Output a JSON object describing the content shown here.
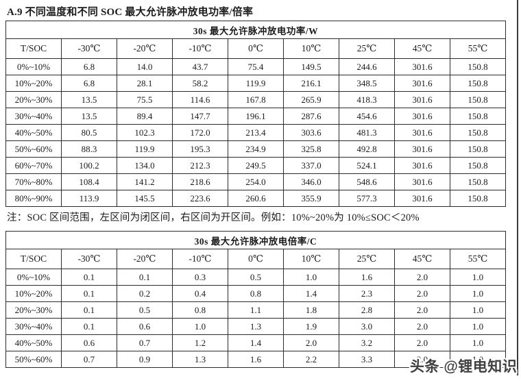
{
  "document": {
    "title": "A.9 不同温度和不同 SOC 最大允许脉冲放电功率/倍率",
    "note": "注：SOC 区间范围，左区间为闭区间，右区间为开区间。例如：10%~20%为 10%≤SOC＜20%",
    "watermark": "头条 @锂电知识"
  },
  "chart_data": [
    {
      "type": "table",
      "title": "30s 最大允许脉冲放电功率/W",
      "corner_label": "T/SOC",
      "columns": [
        "-30℃",
        "-20℃",
        "-10℃",
        "0℃",
        "10℃",
        "25℃",
        "45℃",
        "55℃"
      ],
      "rows": [
        {
          "label": "0%~10%",
          "values": [
            "6.8",
            "14.0",
            "43.7",
            "75.4",
            "149.5",
            "244.6",
            "301.6",
            "150.8"
          ]
        },
        {
          "label": "10%~20%",
          "values": [
            "6.8",
            "28.1",
            "58.2",
            "119.9",
            "216.1",
            "348.5",
            "301.6",
            "150.8"
          ]
        },
        {
          "label": "20%~30%",
          "values": [
            "13.5",
            "75.5",
            "114.6",
            "167.8",
            "265.9",
            "418.3",
            "301.6",
            "150.8"
          ]
        },
        {
          "label": "30%~40%",
          "values": [
            "13.5",
            "89.4",
            "147.7",
            "196.1",
            "287.6",
            "454.6",
            "301.6",
            "150.8"
          ]
        },
        {
          "label": "40%~50%",
          "values": [
            "80.5",
            "102.3",
            "172.0",
            "213.4",
            "303.6",
            "481.3",
            "301.6",
            "150.8"
          ]
        },
        {
          "label": "50%~60%",
          "values": [
            "88.3",
            "119.9",
            "195.3",
            "234.9",
            "325.8",
            "492.8",
            "301.6",
            "150.8"
          ]
        },
        {
          "label": "60%~70%",
          "values": [
            "100.2",
            "134.0",
            "212.3",
            "249.5",
            "337.0",
            "524.1",
            "301.6",
            "150.8"
          ]
        },
        {
          "label": "70%~80%",
          "values": [
            "108.4",
            "141.2",
            "218.6",
            "254.0",
            "346.0",
            "548.6",
            "301.6",
            "150.8"
          ]
        },
        {
          "label": "80%~90%",
          "values": [
            "113.9",
            "145.5",
            "223.6",
            "260.6",
            "355.9",
            "577.3",
            "301.6",
            "150.8"
          ]
        }
      ]
    },
    {
      "type": "table",
      "title": "30s 最大允许脉冲放电倍率/C",
      "corner_label": "T/SOC",
      "columns": [
        "-30℃",
        "-20℃",
        "-10℃",
        "0℃",
        "10℃",
        "25℃",
        "45℃",
        "55℃"
      ],
      "rows": [
        {
          "label": "0%~10%",
          "values": [
            "0.1",
            "0.1",
            "0.3",
            "0.5",
            "1.0",
            "1.6",
            "2.0",
            "1.0"
          ]
        },
        {
          "label": "10%~20%",
          "values": [
            "0.1",
            "0.2",
            "0.4",
            "0.8",
            "1.4",
            "2.3",
            "2.0",
            "1.0"
          ]
        },
        {
          "label": "20%~30%",
          "values": [
            "0.1",
            "0.5",
            "0.8",
            "1.1",
            "1.8",
            "2.8",
            "2.0",
            "1.0"
          ]
        },
        {
          "label": "30%~40%",
          "values": [
            "0.1",
            "0.6",
            "1.0",
            "1.3",
            "1.9",
            "3.0",
            "2.0",
            "1.0"
          ]
        },
        {
          "label": "40%~50%",
          "values": [
            "0.6",
            "0.7",
            "1.2",
            "1.4",
            "2.0",
            "3.2",
            "2.0",
            "1.0"
          ]
        },
        {
          "label": "50%~60%",
          "values": [
            "0.7",
            "0.9",
            "1.3",
            "1.6",
            "2.2",
            "3.3",
            "2.0",
            "1.0"
          ]
        }
      ]
    }
  ]
}
